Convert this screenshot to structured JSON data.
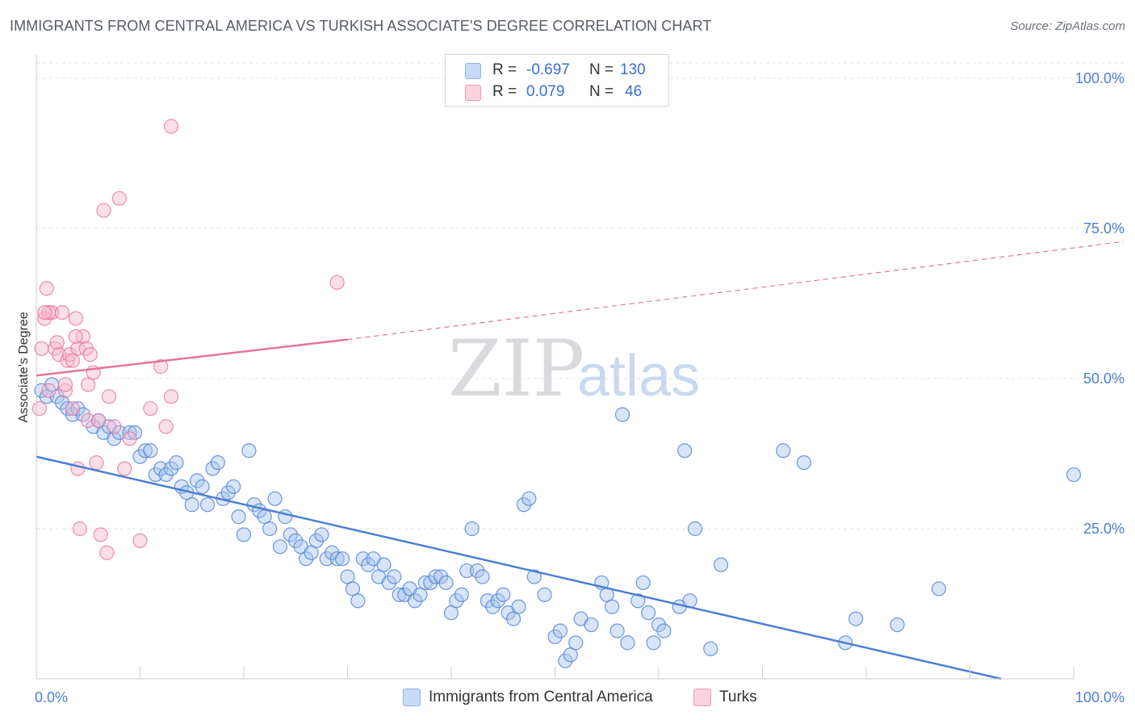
{
  "header": {
    "title": "IMMIGRANTS FROM CENTRAL AMERICA VS TURKISH ASSOCIATE'S DEGREE CORRELATION CHART",
    "source": "Source: ZipAtlas.com"
  },
  "watermark": {
    "zip": "ZIP",
    "atlas": "atlas"
  },
  "legend": {
    "rows": [
      {
        "r_label": "R =",
        "r_value": "-0.697",
        "n_label": "N =",
        "n_value": "130",
        "color": "#a9c4ee"
      },
      {
        "r_label": "R =",
        "r_value": "0.079",
        "n_label": "N =",
        "n_value": "46",
        "color": "#f6b9cb"
      }
    ]
  },
  "bottom_legend": {
    "items": [
      {
        "label": "Immigrants from Central America",
        "color": "#a9c4ee"
      },
      {
        "label": "Turks",
        "color": "#f6b9cb"
      }
    ]
  },
  "chart_data": {
    "type": "scatter",
    "title": "IMMIGRANTS FROM CENTRAL AMERICA VS TURKISH ASSOCIATE'S DEGREE CORRELATION CHART",
    "xlabel": "",
    "ylabel": "Associate's Degree",
    "xlim": [
      0,
      100
    ],
    "ylim": [
      0,
      100
    ],
    "x_ticks": [
      "0.0%",
      "100.0%"
    ],
    "y_ticks": [
      {
        "value": 100,
        "label": "100.0%"
      },
      {
        "value": 75,
        "label": "75.0%"
      },
      {
        "value": 50,
        "label": "50.0%"
      },
      {
        "value": 25,
        "label": "25.0%"
      }
    ],
    "grid": true,
    "series": [
      {
        "name": "Immigrants from Central America",
        "color": "#4a7fd4",
        "fill": "#a9c4ee",
        "trend": {
          "x0": 0,
          "y0": 37,
          "x1": 93,
          "y1": 0,
          "dashed_to": 93
        },
        "points": [
          [
            0.5,
            48
          ],
          [
            1,
            47
          ],
          [
            1.5,
            49
          ],
          [
            2,
            47
          ],
          [
            2.5,
            46
          ],
          [
            3,
            45
          ],
          [
            3.5,
            44
          ],
          [
            4,
            45
          ],
          [
            4.5,
            44
          ],
          [
            5.5,
            42
          ],
          [
            6,
            43
          ],
          [
            6.5,
            41
          ],
          [
            7,
            42
          ],
          [
            7.5,
            40
          ],
          [
            8,
            41
          ],
          [
            9,
            41
          ],
          [
            9.5,
            41
          ],
          [
            10,
            37
          ],
          [
            10.5,
            38
          ],
          [
            11,
            38
          ],
          [
            11.5,
            34
          ],
          [
            12,
            35
          ],
          [
            12.5,
            34
          ],
          [
            13,
            35
          ],
          [
            13.5,
            36
          ],
          [
            14,
            32
          ],
          [
            14.5,
            31
          ],
          [
            15,
            29
          ],
          [
            15.5,
            33
          ],
          [
            16,
            32
          ],
          [
            16.5,
            29
          ],
          [
            17,
            35
          ],
          [
            17.5,
            36
          ],
          [
            18,
            30
          ],
          [
            18.5,
            31
          ],
          [
            19,
            32
          ],
          [
            19.5,
            27
          ],
          [
            20,
            24
          ],
          [
            20.5,
            38
          ],
          [
            21,
            29
          ],
          [
            21.5,
            28
          ],
          [
            22,
            27
          ],
          [
            22.5,
            25
          ],
          [
            23,
            30
          ],
          [
            23.5,
            22
          ],
          [
            24,
            27
          ],
          [
            24.5,
            24
          ],
          [
            25,
            23
          ],
          [
            25.5,
            22
          ],
          [
            26,
            20
          ],
          [
            26.5,
            21
          ],
          [
            27,
            23
          ],
          [
            27.5,
            24
          ],
          [
            28,
            20
          ],
          [
            28.5,
            21
          ],
          [
            29,
            20
          ],
          [
            29.5,
            20
          ],
          [
            30,
            17
          ],
          [
            30.5,
            15
          ],
          [
            31,
            13
          ],
          [
            31.5,
            20
          ],
          [
            32,
            19
          ],
          [
            32.5,
            20
          ],
          [
            33,
            17
          ],
          [
            33.5,
            19
          ],
          [
            34,
            16
          ],
          [
            34.5,
            17
          ],
          [
            35,
            14
          ],
          [
            35.5,
            14
          ],
          [
            36,
            15
          ],
          [
            36.5,
            13
          ],
          [
            37,
            14
          ],
          [
            37.5,
            16
          ],
          [
            38,
            16
          ],
          [
            38.5,
            17
          ],
          [
            39,
            17
          ],
          [
            39.5,
            16
          ],
          [
            40,
            11
          ],
          [
            40.5,
            13
          ],
          [
            41,
            14
          ],
          [
            41.5,
            18
          ],
          [
            42,
            25
          ],
          [
            42.5,
            18
          ],
          [
            43,
            17
          ],
          [
            43.5,
            13
          ],
          [
            44,
            12
          ],
          [
            44.5,
            13
          ],
          [
            45,
            14
          ],
          [
            45.5,
            11
          ],
          [
            46,
            10
          ],
          [
            46.5,
            12
          ],
          [
            47,
            29
          ],
          [
            47.5,
            30
          ],
          [
            48,
            17
          ],
          [
            49,
            14
          ],
          [
            50,
            7
          ],
          [
            50.5,
            8
          ],
          [
            51,
            3
          ],
          [
            51.5,
            4
          ],
          [
            52,
            6
          ],
          [
            52.5,
            10
          ],
          [
            53.5,
            9
          ],
          [
            54.5,
            16
          ],
          [
            55,
            14
          ],
          [
            55.5,
            12
          ],
          [
            56,
            8
          ],
          [
            56.5,
            44
          ],
          [
            57,
            6
          ],
          [
            58,
            13
          ],
          [
            58.5,
            16
          ],
          [
            59,
            11
          ],
          [
            59.5,
            6
          ],
          [
            60,
            9
          ],
          [
            60.5,
            8
          ],
          [
            62,
            12
          ],
          [
            62.5,
            38
          ],
          [
            63,
            13
          ],
          [
            63.5,
            25
          ],
          [
            65,
            5
          ],
          [
            66,
            19
          ],
          [
            72,
            38
          ],
          [
            74,
            36
          ],
          [
            78,
            6
          ],
          [
            79,
            10
          ],
          [
            83,
            9
          ],
          [
            87,
            15
          ],
          [
            100,
            34
          ]
        ]
      },
      {
        "name": "Turks",
        "color": "#e5739a",
        "fill": "#f6b9cb",
        "trend": {
          "x0": 0,
          "y0": 50.5,
          "x1": 30,
          "y1": 56.5,
          "dashed_to": 100,
          "y_at_100": 72
        },
        "points": [
          [
            0.3,
            45
          ],
          [
            0.5,
            55
          ],
          [
            0.8,
            60
          ],
          [
            1,
            65
          ],
          [
            1.2,
            48
          ],
          [
            1.5,
            61
          ],
          [
            1.8,
            55
          ],
          [
            2,
            56
          ],
          [
            2.2,
            54
          ],
          [
            2.5,
            61
          ],
          [
            2.8,
            48
          ],
          [
            3,
            53
          ],
          [
            3.2,
            54
          ],
          [
            3.5,
            53
          ],
          [
            3.5,
            45
          ],
          [
            3.8,
            60
          ],
          [
            4,
            55
          ],
          [
            4,
            35
          ],
          [
            4.2,
            25
          ],
          [
            4.5,
            57
          ],
          [
            4.8,
            55
          ],
          [
            5,
            49
          ],
          [
            5,
            43
          ],
          [
            5.2,
            54
          ],
          [
            5.5,
            51
          ],
          [
            5.8,
            36
          ],
          [
            6,
            43
          ],
          [
            6.2,
            24
          ],
          [
            6.5,
            78
          ],
          [
            6.8,
            21
          ],
          [
            7,
            47
          ],
          [
            7.5,
            42
          ],
          [
            8,
            80
          ],
          [
            8.5,
            35
          ],
          [
            9,
            40
          ],
          [
            10,
            23
          ],
          [
            11,
            45
          ],
          [
            12,
            52
          ],
          [
            12.5,
            42
          ],
          [
            13,
            47
          ],
          [
            13,
            92
          ],
          [
            29,
            66
          ],
          [
            2.8,
            49
          ],
          [
            3.8,
            57
          ],
          [
            1.2,
            61
          ],
          [
            0.8,
            61
          ]
        ]
      }
    ]
  }
}
